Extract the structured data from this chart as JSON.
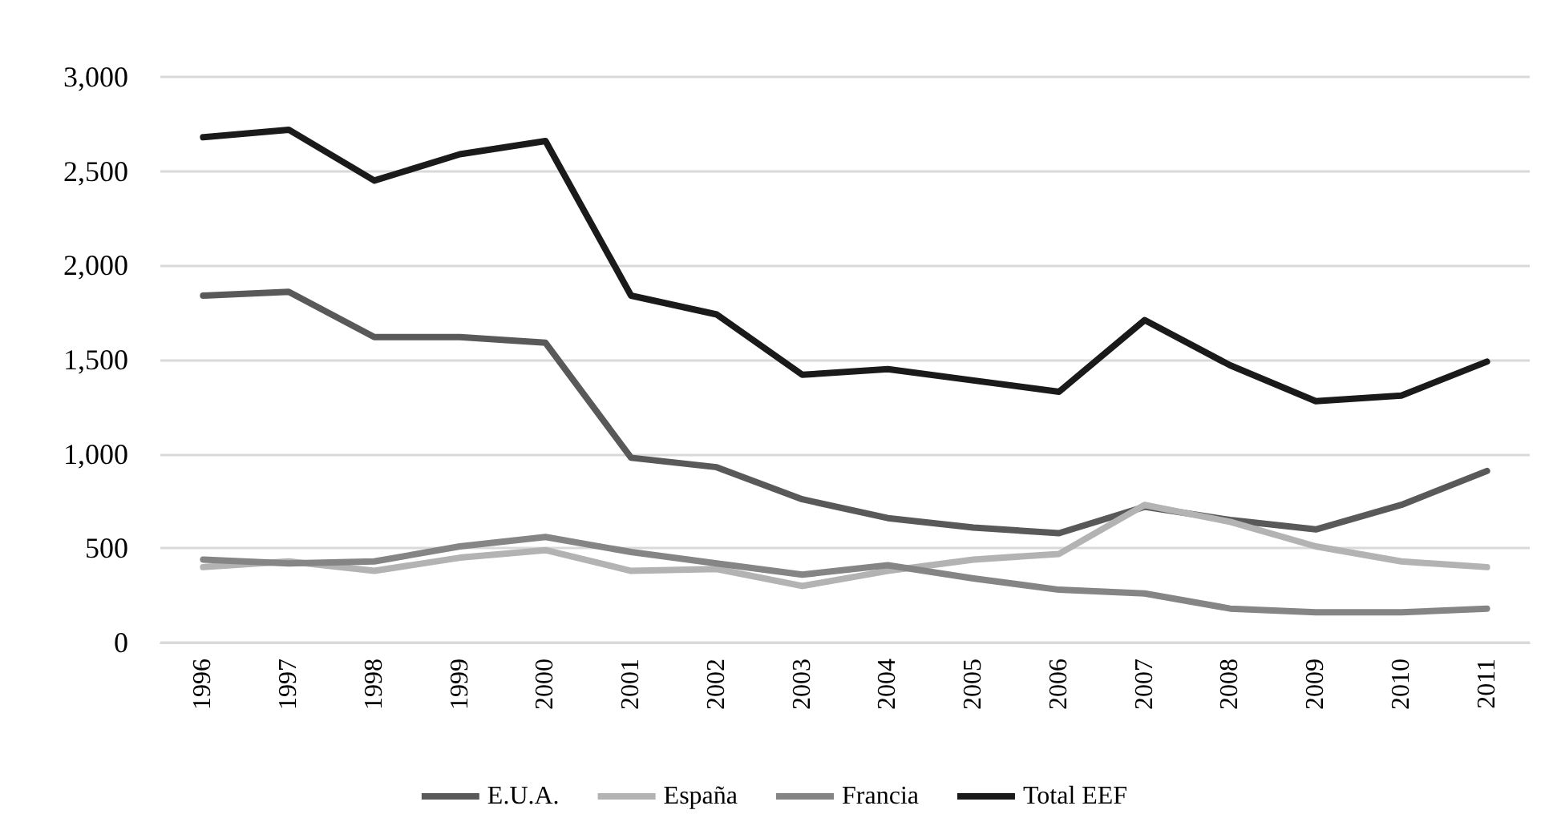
{
  "chart_data": {
    "type": "line",
    "categories": [
      "1996",
      "1997",
      "1998",
      "1999",
      "2000",
      "2001",
      "2002",
      "2003",
      "2004",
      "2005",
      "2006",
      "2007",
      "2008",
      "2009",
      "2010",
      "2011"
    ],
    "series": [
      {
        "name": "E.U.A.",
        "color": "#595959",
        "values": [
          1840,
          1860,
          1620,
          1620,
          1590,
          980,
          930,
          760,
          660,
          610,
          580,
          720,
          650,
          600,
          730,
          910
        ]
      },
      {
        "name": "España",
        "color": "#b3b3b3",
        "values": [
          400,
          430,
          380,
          450,
          490,
          380,
          390,
          300,
          380,
          440,
          470,
          730,
          640,
          510,
          430,
          400
        ]
      },
      {
        "name": "Francia",
        "color": "#858585",
        "values": [
          440,
          420,
          430,
          510,
          560,
          480,
          420,
          360,
          410,
          340,
          280,
          260,
          180,
          160,
          160,
          180
        ]
      },
      {
        "name": "Total EEF",
        "color": "#1a1a1a",
        "values": [
          2680,
          2720,
          2450,
          2590,
          2660,
          1840,
          1740,
          1420,
          1450,
          1390,
          1330,
          1710,
          1470,
          1280,
          1310,
          1490
        ]
      }
    ],
    "ylim": [
      0,
      3000
    ],
    "yticks": [
      0,
      500,
      {
        "value": 1000,
        "label": "1,000"
      },
      {
        "value": 1500,
        "label": "1,500"
      },
      {
        "value": 2000,
        "label": "2,000"
      },
      {
        "value": 2500,
        "label": "2,500"
      },
      {
        "value": 3000,
        "label": "3,000"
      }
    ],
    "grid": "y",
    "legend": "bottom",
    "marker": "none",
    "line_style": "solid"
  }
}
